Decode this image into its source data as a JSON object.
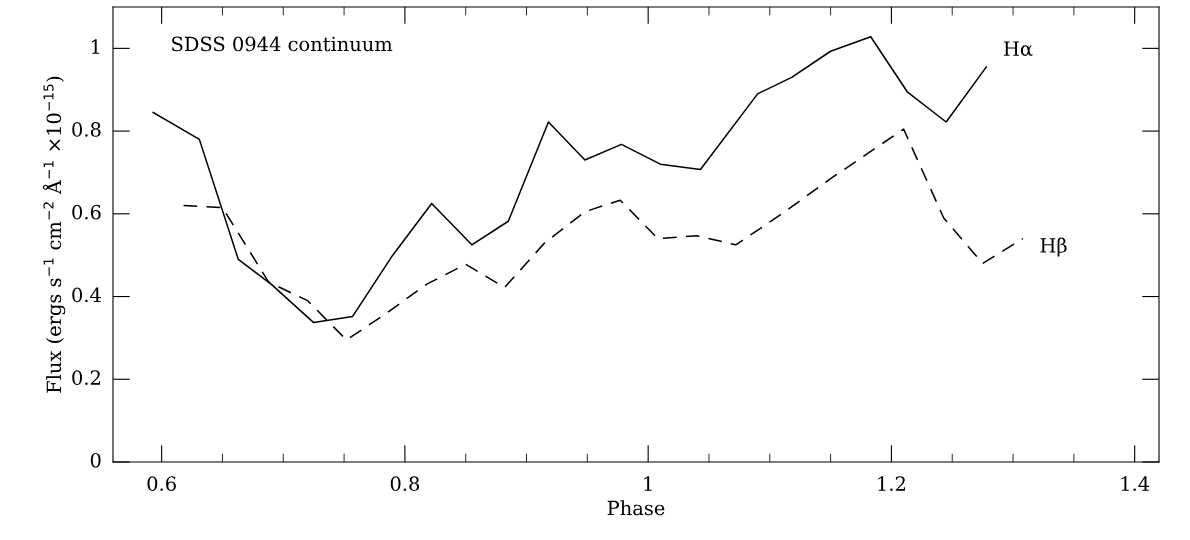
{
  "chart_data": {
    "type": "line",
    "xlabel": "Phase",
    "ylabel": "Flux (ergs s$^{−1}$ cm$^{−2}$ Å$^{−1}$ ×10$^{−15}$)",
    "annotations": [
      "SDSS 0944 continuum"
    ],
    "xlim": [
      0.56,
      1.42
    ],
    "xticks": [
      0.6,
      0.8,
      1,
      1.2,
      1.4
    ],
    "ylim": [
      0,
      1.1
    ],
    "yticks": [
      0,
      0.2,
      0.4,
      0.6,
      0.8,
      1
    ],
    "grid": false,
    "legend": false,
    "marker": "none",
    "series": [
      {
        "name": "Hα",
        "color": "#000000",
        "line_style": "solid",
        "x": [
          0.593,
          0.631,
          0.663,
          0.69,
          0.725,
          0.757,
          0.79,
          0.822,
          0.855,
          0.885,
          0.918,
          0.948,
          0.978,
          1.01,
          1.043,
          1.09,
          1.118,
          1.15,
          1.183,
          1.213,
          1.245,
          1.278
        ],
        "values": [
          0.845,
          0.78,
          0.49,
          0.43,
          0.337,
          0.352,
          0.5,
          0.625,
          0.525,
          0.582,
          0.822,
          0.73,
          0.768,
          0.72,
          0.707,
          0.89,
          0.93,
          0.993,
          1.028,
          0.895,
          0.822,
          0.955
        ]
      },
      {
        "name": "Hβ",
        "color": "#000000",
        "line_style": "dashed",
        "x": [
          0.618,
          0.65,
          0.688,
          0.72,
          0.752,
          0.785,
          0.818,
          0.85,
          0.882,
          0.915,
          0.948,
          0.977,
          1.008,
          1.04,
          1.072,
          1.11,
          1.15,
          1.18,
          1.21,
          1.243,
          1.275,
          1.308
        ],
        "values": [
          0.62,
          0.615,
          0.435,
          0.39,
          0.295,
          0.36,
          0.43,
          0.478,
          0.422,
          0.53,
          0.605,
          0.633,
          0.54,
          0.547,
          0.525,
          0.6,
          0.685,
          0.745,
          0.805,
          0.59,
          0.48,
          0.54
        ]
      }
    ]
  }
}
